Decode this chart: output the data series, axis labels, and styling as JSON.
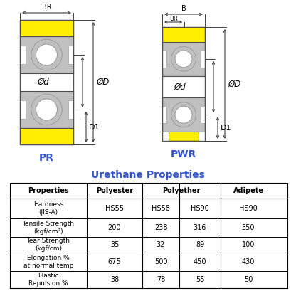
{
  "title": "Urethane Properties",
  "title_color": "#3355cc",
  "background": "#ffffff",
  "table_headers": [
    "Properties",
    "Polyester",
    "Polyether",
    "Adipete"
  ],
  "table_rows": [
    [
      "Hardness\n(JIS-A)",
      "HS55",
      "HS58",
      "HS90",
      "HS90"
    ],
    [
      "Tensile Strength\n(kgf/cm²)",
      "200",
      "238",
      "316",
      "350"
    ],
    [
      "Tear Strength\n(kgf/cm)",
      "35",
      "32",
      "89",
      "100"
    ],
    [
      "Elongation %\nat normal temp",
      "675",
      "500",
      "450",
      "430"
    ],
    [
      "Elastic\nRepulsion %",
      "38",
      "78",
      "55",
      "50"
    ]
  ],
  "label_color": "#3355cc",
  "gray_color": "#c0c0c0",
  "gray_dark": "#a0a0a0",
  "yellow_color": "#ffee00",
  "line_color": "#505050",
  "arrow_color": "#404040"
}
